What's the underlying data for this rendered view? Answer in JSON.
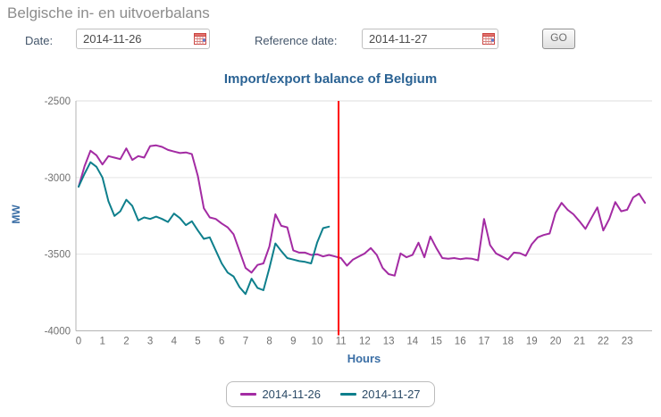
{
  "page": {
    "header": "Belgische in- en uitvoerbalans"
  },
  "form": {
    "date_label": "Date:",
    "date_value": "2014-11-26",
    "reference_date_label": "Reference date:",
    "reference_date_value": "2014-11-27",
    "go_button": "GO"
  },
  "colors": {
    "header_text": "#8c8c8c",
    "title_text": "#2b6394",
    "axis_label_text": "#3a6ea5",
    "tick_text": "#707070",
    "grid_line": "#e4e4e4",
    "axis_line": "#b3b3b3",
    "reference_line": "#ff0000",
    "series_2014_11_26": "#a32ba3",
    "series_2014_11_27": "#0e7f8c"
  },
  "chart_data": {
    "type": "line",
    "title": "Import/export balance of Belgium",
    "xlabel": "Hours",
    "ylabel": "MW",
    "xlim": [
      0,
      23.95
    ],
    "ylim": [
      -4000,
      -2500
    ],
    "x_ticks": [
      0,
      1,
      2,
      3,
      4,
      5,
      6,
      7,
      8,
      9,
      10,
      11,
      12,
      13,
      14,
      15,
      16,
      17,
      18,
      19,
      20,
      21,
      22,
      23
    ],
    "y_ticks": [
      -2500,
      -3000,
      -3500,
      -4000
    ],
    "grid": "horizontal",
    "legend_position": "bottom-center",
    "interval_hours": 0.25,
    "reference_time_marker": {
      "hour": 10.9,
      "color": "#ff0000"
    },
    "series": [
      {
        "name": "2014-11-26",
        "color": "#a32ba3",
        "start_hour": 0,
        "values": [
          -3060,
          -2925,
          -2825,
          -2855,
          -2915,
          -2860,
          -2870,
          -2880,
          -2810,
          -2885,
          -2860,
          -2870,
          -2795,
          -2790,
          -2800,
          -2820,
          -2830,
          -2840,
          -2836,
          -2847,
          -2990,
          -3200,
          -3260,
          -3270,
          -3300,
          -3325,
          -3370,
          -3480,
          -3590,
          -3620,
          -3570,
          -3560,
          -3450,
          -3240,
          -3315,
          -3325,
          -3475,
          -3490,
          -3490,
          -3505,
          -3500,
          -3515,
          -3505,
          -3515,
          -3525,
          -3575,
          -3535,
          -3515,
          -3495,
          -3460,
          -3505,
          -3590,
          -3630,
          -3640,
          -3495,
          -3520,
          -3505,
          -3425,
          -3520,
          -3385,
          -3460,
          -3525,
          -3530,
          -3525,
          -3532,
          -3527,
          -3530,
          -3540,
          -3270,
          -3440,
          -3495,
          -3515,
          -3535,
          -3490,
          -3493,
          -3510,
          -3435,
          -3390,
          -3375,
          -3365,
          -3230,
          -3165,
          -3210,
          -3240,
          -3285,
          -3335,
          -3265,
          -3195,
          -3345,
          -3270,
          -3160,
          -3220,
          -3210,
          -3130,
          -3105,
          -3165
        ]
      },
      {
        "name": "2014-11-27",
        "color": "#0e7f8c",
        "start_hour": 0,
        "values": [
          -3060,
          -2975,
          -2900,
          -2930,
          -3000,
          -3155,
          -3250,
          -3220,
          -3145,
          -3185,
          -3280,
          -3260,
          -3270,
          -3255,
          -3270,
          -3290,
          -3235,
          -3265,
          -3310,
          -3285,
          -3345,
          -3400,
          -3390,
          -3475,
          -3560,
          -3620,
          -3645,
          -3715,
          -3760,
          -3660,
          -3720,
          -3735,
          -3590,
          -3430,
          -3480,
          -3525,
          -3535,
          -3545,
          -3550,
          -3560,
          -3425,
          -3330,
          -3320
        ]
      }
    ]
  }
}
